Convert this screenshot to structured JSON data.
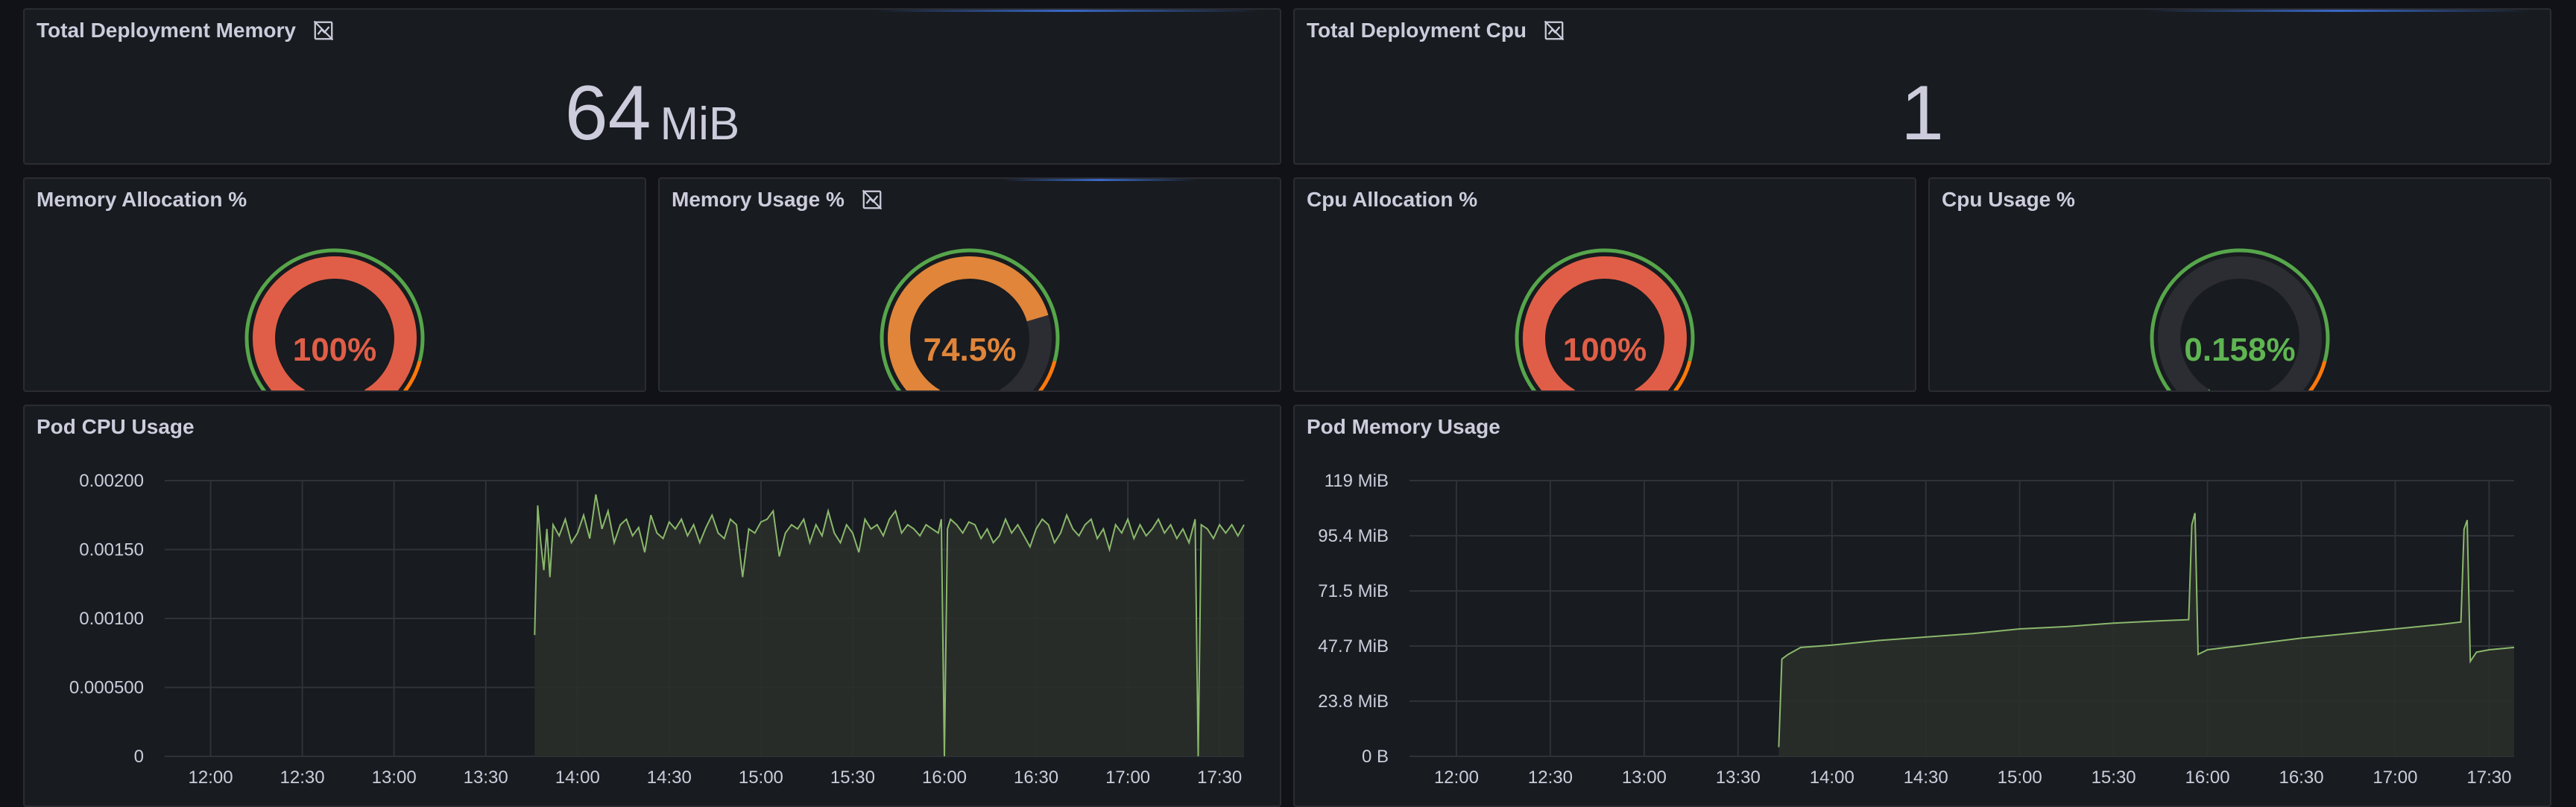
{
  "panels": {
    "total_memory": {
      "title": "Total Deployment Memory",
      "value": "64",
      "unit": "MiB"
    },
    "total_cpu": {
      "title": "Total Deployment Cpu",
      "value": "1"
    },
    "memory_allocation": {
      "title": "Memory Allocation %",
      "value": 100,
      "display": "100%",
      "color": "#e05e47"
    },
    "memory_usage": {
      "title": "Memory Usage %",
      "value": 74.5,
      "display": "74.5%",
      "color": "#e0853a"
    },
    "cpu_allocation": {
      "title": "Cpu Allocation %",
      "value": 100,
      "display": "100%",
      "color": "#e05e47"
    },
    "cpu_usage": {
      "title": "Cpu Usage %",
      "value": 0.158,
      "display": "0.158%",
      "color": "#5fb552"
    },
    "pod_cpu_usage": {
      "title": "Pod CPU Usage"
    },
    "pod_memory_usage": {
      "title": "Pod Memory Usage"
    }
  },
  "colors": {
    "threshold_green": "#56a64b",
    "threshold_orange": "#ff780a",
    "series_line": "#8ab86b",
    "series_fill": "#2a2f2a",
    "gauge_track": "#2c2d33"
  },
  "chart_data": [
    {
      "type": "area",
      "title": "Pod CPU Usage",
      "x_ticks": [
        "12:00",
        "12:30",
        "13:00",
        "13:30",
        "14:00",
        "14:30",
        "15:00",
        "15:30",
        "16:00",
        "16:30",
        "17:00",
        "17:30"
      ],
      "y_ticks": [
        "0",
        "0.000500",
        "0.00100",
        "0.00150",
        "0.00200"
      ],
      "ylim": [
        0,
        0.002
      ],
      "xlim": [
        "11:45",
        "17:38"
      ],
      "series": [
        {
          "points": [
            [
              "13:46",
              0.00088
            ],
            [
              "13:47",
              0.00182
            ],
            [
              "13:48",
              0.00155
            ],
            [
              "13:49",
              0.00135
            ],
            [
              "13:50",
              0.00165
            ],
            [
              "13:51",
              0.0013
            ],
            [
              "13:52",
              0.00168
            ],
            [
              "13:54",
              0.0016
            ],
            [
              "13:56",
              0.00172
            ],
            [
              "13:58",
              0.00155
            ],
            [
              "14:00",
              0.00162
            ],
            [
              "14:02",
              0.00175
            ],
            [
              "14:04",
              0.00158
            ],
            [
              "14:06",
              0.0019
            ],
            [
              "14:08",
              0.00165
            ],
            [
              "14:10",
              0.00178
            ],
            [
              "14:12",
              0.00155
            ],
            [
              "14:14",
              0.00168
            ],
            [
              "14:16",
              0.00172
            ],
            [
              "14:18",
              0.0016
            ],
            [
              "14:20",
              0.00166
            ],
            [
              "14:22",
              0.00148
            ],
            [
              "14:24",
              0.00175
            ],
            [
              "14:26",
              0.00162
            ],
            [
              "14:28",
              0.00158
            ],
            [
              "14:30",
              0.0017
            ],
            [
              "14:32",
              0.00165
            ],
            [
              "14:34",
              0.00172
            ],
            [
              "14:36",
              0.0016
            ],
            [
              "14:38",
              0.00168
            ],
            [
              "14:40",
              0.00155
            ],
            [
              "14:42",
              0.00166
            ],
            [
              "14:44",
              0.00175
            ],
            [
              "14:46",
              0.00162
            ],
            [
              "14:48",
              0.00158
            ],
            [
              "14:50",
              0.00172
            ],
            [
              "14:52",
              0.00168
            ],
            [
              "14:54",
              0.0013
            ],
            [
              "14:56",
              0.00165
            ],
            [
              "14:58",
              0.00162
            ],
            [
              "15:00",
              0.0017
            ],
            [
              "15:02",
              0.00172
            ],
            [
              "15:04",
              0.00178
            ],
            [
              "15:06",
              0.00145
            ],
            [
              "15:08",
              0.00162
            ],
            [
              "15:10",
              0.00168
            ],
            [
              "15:12",
              0.00165
            ],
            [
              "15:14",
              0.00172
            ],
            [
              "15:16",
              0.00155
            ],
            [
              "15:18",
              0.00168
            ],
            [
              "15:20",
              0.0016
            ],
            [
              "15:22",
              0.00178
            ],
            [
              "15:24",
              0.00162
            ],
            [
              "15:26",
              0.00155
            ],
            [
              "15:28",
              0.00168
            ],
            [
              "15:30",
              0.00162
            ],
            [
              "15:32",
              0.00148
            ],
            [
              "15:34",
              0.00172
            ],
            [
              "15:36",
              0.00165
            ],
            [
              "15:38",
              0.00168
            ],
            [
              "15:40",
              0.0016
            ],
            [
              "15:42",
              0.00172
            ],
            [
              "15:44",
              0.00178
            ],
            [
              "15:46",
              0.00162
            ],
            [
              "15:48",
              0.00168
            ],
            [
              "15:50",
              0.00165
            ],
            [
              "15:52",
              0.0016
            ],
            [
              "15:54",
              0.00168
            ],
            [
              "15:56",
              0.00165
            ],
            [
              "15:58",
              0.00162
            ],
            [
              "15:59",
              0.00172
            ],
            [
              "16:00",
              0.0
            ],
            [
              "16:01",
              0.00165
            ],
            [
              "16:02",
              0.00172
            ],
            [
              "16:04",
              0.00168
            ],
            [
              "16:06",
              0.00162
            ],
            [
              "16:08",
              0.0017
            ],
            [
              "16:10",
              0.00168
            ],
            [
              "16:12",
              0.00158
            ],
            [
              "16:14",
              0.00165
            ],
            [
              "16:16",
              0.00155
            ],
            [
              "16:18",
              0.0016
            ],
            [
              "16:20",
              0.00172
            ],
            [
              "16:22",
              0.00162
            ],
            [
              "16:24",
              0.00168
            ],
            [
              "16:26",
              0.0016
            ],
            [
              "16:28",
              0.00152
            ],
            [
              "16:30",
              0.00165
            ],
            [
              "16:32",
              0.00172
            ],
            [
              "16:34",
              0.00168
            ],
            [
              "16:36",
              0.00155
            ],
            [
              "16:38",
              0.00162
            ],
            [
              "16:40",
              0.00175
            ],
            [
              "16:42",
              0.00165
            ],
            [
              "16:44",
              0.0016
            ],
            [
              "16:46",
              0.00168
            ],
            [
              "16:48",
              0.00172
            ],
            [
              "16:50",
              0.00158
            ],
            [
              "16:52",
              0.00165
            ],
            [
              "16:54",
              0.0015
            ],
            [
              "16:56",
              0.00168
            ],
            [
              "16:58",
              0.00162
            ],
            [
              "17:00",
              0.00172
            ],
            [
              "17:02",
              0.00158
            ],
            [
              "17:04",
              0.00168
            ],
            [
              "17:06",
              0.0016
            ],
            [
              "17:08",
              0.00165
            ],
            [
              "17:10",
              0.00172
            ],
            [
              "17:12",
              0.00162
            ],
            [
              "17:14",
              0.00168
            ],
            [
              "17:16",
              0.00158
            ],
            [
              "17:18",
              0.00165
            ],
            [
              "17:20",
              0.00155
            ],
            [
              "17:22",
              0.00172
            ],
            [
              "17:23",
              0.0
            ],
            [
              "17:24",
              0.00168
            ],
            [
              "17:26",
              0.00165
            ],
            [
              "17:28",
              0.00158
            ],
            [
              "17:30",
              0.00168
            ],
            [
              "17:32",
              0.00162
            ],
            [
              "17:34",
              0.00168
            ],
            [
              "17:36",
              0.0016
            ],
            [
              "17:38",
              0.00168
            ]
          ]
        }
      ]
    },
    {
      "type": "area",
      "title": "Pod Memory Usage",
      "x_ticks": [
        "12:00",
        "12:30",
        "13:00",
        "13:30",
        "14:00",
        "14:30",
        "15:00",
        "15:30",
        "16:00",
        "16:30",
        "17:00",
        "17:30"
      ],
      "y_ticks": [
        "0 B",
        "23.8 MiB",
        "47.7 MiB",
        "71.5 MiB",
        "95.4 MiB",
        "119 MiB"
      ],
      "ylim": [
        0,
        119
      ],
      "xlim": [
        "11:45",
        "17:38"
      ],
      "series": [
        {
          "points": [
            [
              "13:43",
              4
            ],
            [
              "13:44",
              42
            ],
            [
              "13:46",
              44
            ],
            [
              "13:50",
              47
            ],
            [
              "14:00",
              48
            ],
            [
              "14:15",
              50
            ],
            [
              "14:30",
              51.5
            ],
            [
              "14:45",
              53
            ],
            [
              "15:00",
              55
            ],
            [
              "15:15",
              56
            ],
            [
              "15:30",
              57.5
            ],
            [
              "15:45",
              58.5
            ],
            [
              "15:54",
              59
            ],
            [
              "15:55",
              100
            ],
            [
              "15:56",
              105
            ],
            [
              "15:57",
              44
            ],
            [
              "16:00",
              46
            ],
            [
              "16:15",
              48.5
            ],
            [
              "16:30",
              51
            ],
            [
              "16:45",
              53
            ],
            [
              "17:00",
              55
            ],
            [
              "17:15",
              57
            ],
            [
              "17:21",
              58
            ],
            [
              "17:22",
              98
            ],
            [
              "17:23",
              102
            ],
            [
              "17:24",
              41
            ],
            [
              "17:26",
              45
            ],
            [
              "17:30",
              46
            ],
            [
              "17:38",
              47
            ]
          ]
        }
      ]
    }
  ]
}
